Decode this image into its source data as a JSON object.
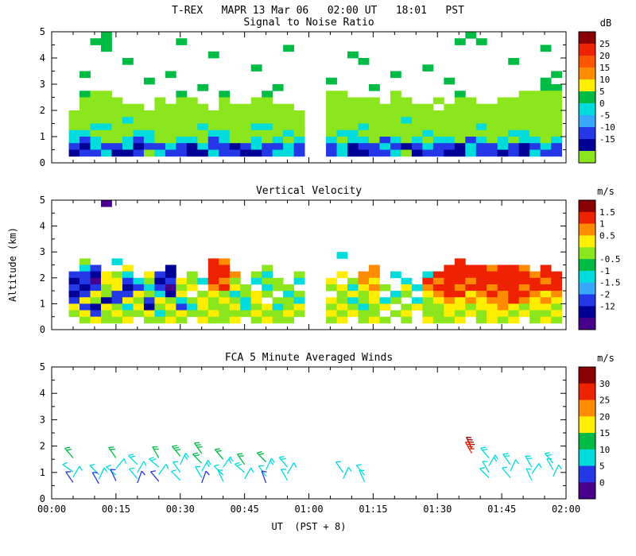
{
  "figure": {
    "title": "T-REX   MAPR 13 Mar 06   02:00 UT   18:01   PST",
    "x_axis_label": "UT  (PST + 8)",
    "y_axis_label": "Altitude (km)",
    "background_color": "#ffffff",
    "axis_color": "#000000"
  },
  "axes": {
    "x_tick_labels": [
      "00:00",
      "00:15",
      "00:30",
      "00:45",
      "01:00",
      "01:15",
      "01:30",
      "01:45",
      "02:00"
    ],
    "x_range_minutes_ut": [
      0,
      120
    ],
    "x_major_tick_min": 15,
    "x_minor_tick_min": 5,
    "y_tick_labels": [
      "0",
      "1",
      "2",
      "3",
      "4",
      "5"
    ],
    "y_range_km": [
      0,
      5
    ],
    "data_gap_ut": [
      "01:00",
      "01:04"
    ]
  },
  "palette": {
    "m": "#8b0000",
    "r": "#ee2200",
    "o": "#ff8c00",
    "y": "#ffee00",
    "g": "#8ce61e",
    "G": "#00bb44",
    "c": "#00dcdc",
    "l": "#38a8ff",
    "b": "#2438e8",
    "n": "#000096",
    "p": "#46008c"
  },
  "chart_data": [
    {
      "type": "heatmap",
      "title": "Signal to Noise Ratio",
      "value_units": "dB",
      "colorbar": {
        "unit": "dB",
        "colors": [
          "#8b0000",
          "#ee2200",
          "#ff5500",
          "#ff8c00",
          "#ffee00",
          "#00bb44",
          "#00dcdc",
          "#38a8ff",
          "#2438e8",
          "#000096",
          "#8ce61e"
        ],
        "tick_labels": [
          "25",
          "20",
          "15",
          "10",
          "5",
          "0",
          "-5",
          "-10",
          "-15",
          ""
        ]
      },
      "grid": {
        "t_start_min": 4,
        "t_step_min": 2.5,
        "alt_top_km": 5,
        "alt_step_km": 0.25,
        "legend": "each char = one cell; rows top(5km) to bottom(0km); . = no echo; letters are palette keys",
        "rows": [
          "...G.................................G........",
          "..GG......G.........................G.G.......",
          "...G................G.......................G.",
          ".............G............G...................",
          ".....G.....................G.............G....",
          ".................G...............G............",
          ".G.......G....................G..............G",
          ".......G................G..........G........G.",
          "............G......G........G...............GG",
          ".Ggg......G...G...G.....gg....g.....G.....gggg",
          ".gggg...g.gg..g..gg.....ggggg.gg..g.gg..gggggg",
          ".gggggg.ggggg.ggggggg...gggggggggg.ggggggggggg",
          "gggggggggggggggggggggg..gggggggggggggggggggggg",
          "gggggcgggggggggggggggg..gggggggcgggggggggggggg",
          "ggccggggggggcggggccggg..gggcggggggggggcggggggg",
          "ccggggccgggggccgggggcg..gccggggggcgggggggccggg",
          "cbcggcbcggccgbcggcgcgc..cgccgbcgcgccgbcgcgccgc",
          "bncbbcnbbcbncbbnbcbbcb..bcnbbcbnbcbbncbbcbnbcb",
          "nbbcnnbgcbbnncbbnnbccb..bcnnbbcgnbbnncbbnbncbb",
          ".............................................."
        ]
      }
    },
    {
      "type": "heatmap",
      "title": "Vertical Velocity",
      "value_units": "m/s",
      "colorbar": {
        "unit": "m/s",
        "colors": [
          "#8b0000",
          "#ee2200",
          "#ff8c00",
          "#ffee00",
          "#8ce61e",
          "#00bb44",
          "#00dcdc",
          "#38a8ff",
          "#2438e8",
          "#000096",
          "#46008c"
        ],
        "tick_labels": [
          "1.5",
          "1",
          "0.5",
          "",
          "-0.5",
          "-1",
          "-1.5",
          "-2",
          "-12",
          ""
        ]
      },
      "grid": {
        "t_start_min": 4,
        "t_step_min": 2.5,
        "alt_top_km": 5,
        "alt_step_km": 0.25,
        "legend": "updrafts warm colors, downdrafts cool colors; . = no data",
        "rows": [
          "...p..........................................",
          "..............................................",
          "..............................................",
          "..............................................",
          "..............................................",
          "..............................................",
          "..............................................",
          "..............................................",
          ".........................c....................",
          ".g..c........ro.....................r.........",
          ".cb..y...n...rr...g.........o......rrrrorro.r.",
          "bbnygc.ybn.g.rro.gc..g...y.oo.c..crrrrrrrrrorr",
          "nbpyybcgnbygcrog.cgg.c..y.goy..c.rorrorrrrrror",
          "bnbgynbcbpgy.oryg.cgg...gycyog.ycorrorrorrorrr",
          "nbygbbygcny.gygcgyg.cg...gygy.cg.yorryororroyo",
          "bygnbygbygcgygygcy.ggc..ygcgycg.cgyoyoyooroyoy",
          "ybnygcyngybcyggycgycgy..gygcgy.gyggyygyyoygyyg",
          "gybgyggycgyggygggyggyg..ygygg.gy.ggygygyygyggy",
          ".gyggy.ggyg.yggy.gygg...gy.gyg.g.yggy.gygy.gyg",
          ".............................................."
        ]
      }
    },
    {
      "type": "wind_barbs",
      "title": "FCA 5 Minute Averaged Winds",
      "value_units": "m/s",
      "colorbar": {
        "unit": "m/s",
        "colors": [
          "#8b0000",
          "#ee2200",
          "#ff8c00",
          "#ffee00",
          "#00bb44",
          "#00dcdc",
          "#2438e8",
          "#46008c"
        ],
        "tick_labels": [
          "30",
          "25",
          "20",
          "15",
          "10",
          "5",
          "0"
        ]
      },
      "speed_thresholds": [
        30,
        25,
        20,
        15,
        10,
        5,
        0
      ],
      "speed_colors": [
        "m",
        "r",
        "o",
        "y",
        "G",
        "c",
        "b"
      ],
      "barb_fields": [
        "time_min_ut",
        "altitude_km",
        "speed_ms",
        "staff_angle_deg"
      ],
      "barbs": [
        [
          5,
          1.55,
          12,
          -40
        ],
        [
          5,
          1.02,
          7,
          -55
        ],
        [
          5,
          0.82,
          6,
          30
        ],
        [
          5,
          0.62,
          4,
          -35
        ],
        [
          11,
          0.92,
          7,
          -45
        ],
        [
          11,
          0.74,
          6,
          25
        ],
        [
          11,
          0.58,
          4,
          -30
        ],
        [
          15,
          1.55,
          12,
          -35
        ],
        [
          15,
          1.15,
          7,
          40
        ],
        [
          15,
          0.9,
          6,
          -50
        ],
        [
          15,
          0.68,
          4,
          -25
        ],
        [
          20,
          1.3,
          8,
          -45
        ],
        [
          20,
          1.0,
          7,
          30
        ],
        [
          20,
          0.76,
          6,
          -40
        ],
        [
          20,
          0.6,
          4,
          20
        ],
        [
          25,
          1.55,
          12,
          -30
        ],
        [
          25,
          1.2,
          8,
          -50
        ],
        [
          25,
          0.92,
          6,
          35
        ],
        [
          25,
          0.66,
          4,
          -40
        ],
        [
          30,
          1.62,
          13,
          -40
        ],
        [
          30,
          1.3,
          8,
          25
        ],
        [
          30,
          1.0,
          7,
          -35
        ],
        [
          30,
          0.7,
          5,
          -45
        ],
        [
          35,
          1.72,
          14,
          -35
        ],
        [
          35,
          1.35,
          10,
          -45
        ],
        [
          35,
          1.05,
          8,
          30
        ],
        [
          35,
          0.8,
          6,
          -30
        ],
        [
          35,
          0.6,
          4,
          20
        ],
        [
          40,
          1.5,
          12,
          -40
        ],
        [
          40,
          1.2,
          8,
          35
        ],
        [
          40,
          0.9,
          7,
          -45
        ],
        [
          40,
          0.66,
          5,
          -25
        ],
        [
          45,
          1.3,
          10,
          -35
        ],
        [
          45,
          1.0,
          8,
          -50
        ],
        [
          45,
          0.76,
          6,
          30
        ],
        [
          50,
          1.4,
          10,
          -45
        ],
        [
          50,
          1.1,
          8,
          25
        ],
        [
          50,
          0.85,
          6,
          -35
        ],
        [
          50,
          0.6,
          4,
          -20
        ],
        [
          55,
          1.2,
          9,
          -40
        ],
        [
          55,
          0.95,
          7,
          30
        ],
        [
          55,
          0.7,
          5,
          -30
        ],
        [
          68,
          1.0,
          7,
          -35
        ],
        [
          68,
          0.76,
          5,
          25
        ],
        [
          73,
          0.9,
          7,
          -40
        ],
        [
          73,
          0.65,
          5,
          -25
        ],
        [
          98,
          1.9,
          31,
          -25
        ],
        [
          98,
          1.73,
          27,
          -30
        ],
        [
          102,
          1.55,
          9,
          -40
        ],
        [
          102,
          1.25,
          8,
          30
        ],
        [
          102,
          1.0,
          7,
          -30
        ],
        [
          102,
          0.8,
          6,
          -45
        ],
        [
          107,
          1.3,
          8,
          -35
        ],
        [
          107,
          1.05,
          7,
          25
        ],
        [
          107,
          0.8,
          6,
          -40
        ],
        [
          112,
          1.2,
          8,
          -30
        ],
        [
          112,
          0.95,
          7,
          35
        ],
        [
          112,
          0.7,
          5,
          -25
        ],
        [
          117,
          1.35,
          8,
          -40
        ],
        [
          117,
          1.1,
          7,
          -30
        ],
        [
          117,
          0.85,
          6,
          25
        ]
      ]
    }
  ]
}
